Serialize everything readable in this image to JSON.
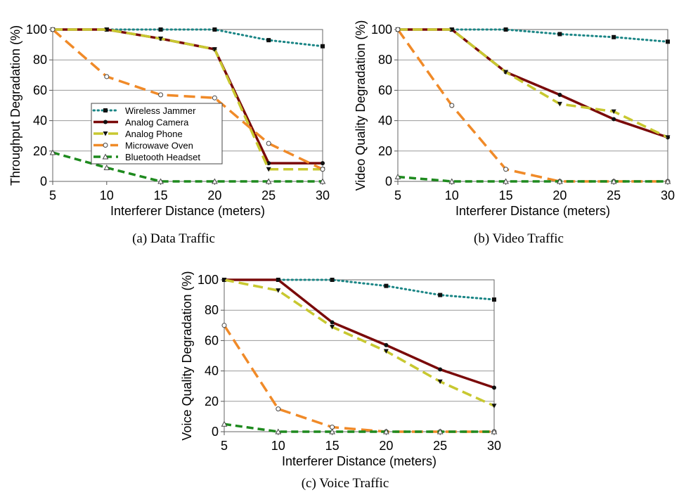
{
  "chart_data": [
    {
      "type": "line",
      "caption": "(a) Data Traffic",
      "xlabel": "Interferer Distance (meters)",
      "ylabel": "Throughput Degradation (%)",
      "x": [
        5,
        10,
        15,
        20,
        25,
        30
      ],
      "xlim": [
        5,
        30
      ],
      "xticks": [
        5,
        10,
        15,
        20,
        25,
        30
      ],
      "ylim": [
        0,
        100
      ],
      "yticks": [
        0,
        20,
        40,
        60,
        80,
        100
      ],
      "grid": true,
      "legend": "left",
      "series": [
        {
          "name": "Wireless Jammer",
          "color": "#1a8585",
          "values": [
            100,
            100,
            100,
            100,
            93,
            89
          ]
        },
        {
          "name": "Analog Camera",
          "color": "#7a0a0a",
          "values": [
            100,
            100,
            94,
            87,
            12,
            12
          ]
        },
        {
          "name": "Analog Phone",
          "color": "#c8c830",
          "values": [
            100,
            100,
            94,
            87,
            8,
            8
          ]
        },
        {
          "name": "Microwave Oven",
          "color": "#f08a28",
          "values": [
            100,
            69,
            57,
            55,
            25,
            8
          ]
        },
        {
          "name": "Bluetooth Headset",
          "color": "#1e8a1e",
          "values": [
            19,
            9,
            0,
            0,
            0,
            0
          ]
        }
      ]
    },
    {
      "type": "line",
      "caption": "(b) Video Traffic",
      "xlabel": "Interferer Distance (meters)",
      "ylabel": "Video Quality Degradation (%)",
      "x": [
        5,
        10,
        15,
        20,
        25,
        30
      ],
      "xlim": [
        5,
        30
      ],
      "xticks": [
        5,
        10,
        15,
        20,
        25,
        30
      ],
      "ylim": [
        0,
        100
      ],
      "yticks": [
        0,
        20,
        40,
        60,
        80,
        100
      ],
      "grid": true,
      "series": [
        {
          "name": "Wireless Jammer",
          "color": "#1a8585",
          "values": [
            100,
            100,
            100,
            97,
            95,
            92
          ]
        },
        {
          "name": "Analog Camera",
          "color": "#7a0a0a",
          "values": [
            100,
            100,
            72,
            57,
            41,
            29
          ]
        },
        {
          "name": "Analog Phone",
          "color": "#c8c830",
          "values": [
            100,
            100,
            72,
            51,
            46,
            29
          ]
        },
        {
          "name": "Microwave Oven",
          "color": "#f08a28",
          "values": [
            100,
            50,
            8,
            0,
            0,
            0
          ]
        },
        {
          "name": "Bluetooth Headset",
          "color": "#1e8a1e",
          "values": [
            3,
            0,
            0,
            0,
            0,
            0
          ]
        }
      ]
    },
    {
      "type": "line",
      "caption": "(c) Voice Traffic",
      "xlabel": "Interferer Distance (meters)",
      "ylabel": "Voice Quality Degradation (%)",
      "x": [
        5,
        10,
        15,
        20,
        25,
        30
      ],
      "xlim": [
        5,
        30
      ],
      "xticks": [
        5,
        10,
        15,
        20,
        25,
        30
      ],
      "ylim": [
        0,
        100
      ],
      "yticks": [
        0,
        20,
        40,
        60,
        80,
        100
      ],
      "grid": true,
      "series": [
        {
          "name": "Wireless Jammer",
          "color": "#1a8585",
          "values": [
            100,
            100,
            100,
            96,
            90,
            87
          ]
        },
        {
          "name": "Analog Camera",
          "color": "#7a0a0a",
          "values": [
            100,
            100,
            72,
            57,
            41,
            29
          ]
        },
        {
          "name": "Analog Phone",
          "color": "#c8c830",
          "values": [
            100,
            93,
            69,
            53,
            33,
            17
          ]
        },
        {
          "name": "Microwave Oven",
          "color": "#f08a28",
          "values": [
            70,
            15,
            3,
            0,
            0,
            0
          ]
        },
        {
          "name": "Bluetooth Headset",
          "color": "#1e8a1e",
          "values": [
            5,
            0,
            0,
            0,
            0,
            0
          ]
        }
      ]
    }
  ]
}
